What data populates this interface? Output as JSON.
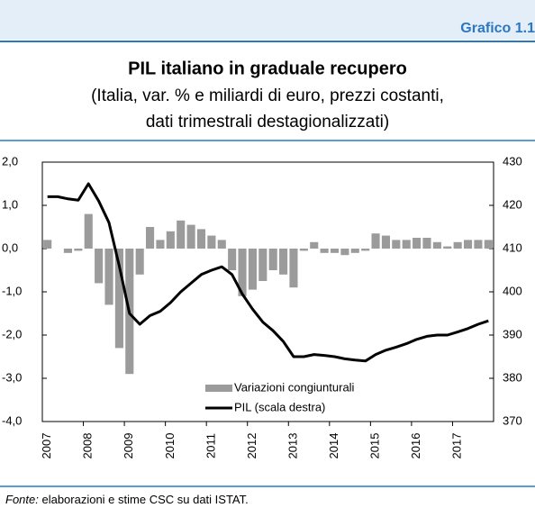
{
  "header": {
    "label": "Grafico 1.1"
  },
  "chart_data": {
    "type": "bar-line",
    "title": "PIL italiano in graduale recupero",
    "subtitle": [
      "(Italia, var. % e miliardi di euro, prezzi costanti,",
      "dati trimestrali destagionalizzati)"
    ],
    "categories": [
      "2007",
      null,
      null,
      null,
      "2008",
      null,
      null,
      null,
      "2009",
      null,
      null,
      null,
      "2010",
      null,
      null,
      null,
      "2011",
      null,
      null,
      null,
      "2012",
      null,
      null,
      null,
      "2013",
      null,
      null,
      null,
      "2014",
      null,
      null,
      null,
      "2015",
      null,
      null,
      null,
      "2016",
      null,
      null,
      null,
      "2017",
      null,
      null,
      null
    ],
    "series": [
      {
        "name": "Variazioni congiunturali",
        "type": "bar",
        "axis": "y",
        "color": "#9b9b9b",
        "values": [
          0.2,
          0.0,
          -0.1,
          -0.05,
          0.8,
          -0.8,
          -1.3,
          -2.3,
          -2.9,
          -0.6,
          0.5,
          0.2,
          0.4,
          0.65,
          0.55,
          0.45,
          0.3,
          0.2,
          -0.5,
          -1.1,
          -0.95,
          -0.75,
          -0.5,
          -0.6,
          -0.9,
          -0.05,
          0.15,
          -0.1,
          -0.1,
          -0.15,
          -0.1,
          -0.05,
          0.35,
          0.3,
          0.2,
          0.2,
          0.25,
          0.25,
          0.15,
          0.05,
          0.15,
          0.2,
          0.2,
          0.2
        ]
      },
      {
        "name": "PIL (scala destra)",
        "type": "line",
        "axis": "y2",
        "color": "#000000",
        "values": [
          422,
          422,
          421.5,
          421.2,
          425,
          421,
          416,
          406,
          395,
          392.5,
          394.5,
          395.5,
          397.5,
          400,
          402,
          404,
          405,
          405.8,
          404,
          399.5,
          396,
          393,
          391,
          388.5,
          385,
          385,
          385.5,
          385.3,
          385,
          384.5,
          384.2,
          384,
          385.5,
          386.5,
          387.2,
          388,
          389,
          389.7,
          390,
          390,
          390.7,
          391.5,
          392.5,
          393.3
        ]
      }
    ],
    "ylim": [
      -4,
      2
    ],
    "yticks": [
      {
        "value": 2,
        "label": "2,0"
      },
      {
        "value": 1,
        "label": "1,0"
      },
      {
        "value": 0,
        "label": "0,0"
      },
      {
        "value": -1,
        "label": "-1,0"
      },
      {
        "value": -2,
        "label": "-2,0"
      },
      {
        "value": -3,
        "label": "-3,0"
      },
      {
        "value": -4,
        "label": "-4,0"
      }
    ],
    "y2lim": [
      370,
      430
    ],
    "y2ticks": [
      370,
      380,
      390,
      400,
      410,
      420,
      430
    ],
    "grid": false,
    "legend": "bottom"
  },
  "source": {
    "label": "Fonte:",
    "text": " elaborazioni e stime CSC su dati ISTAT."
  }
}
